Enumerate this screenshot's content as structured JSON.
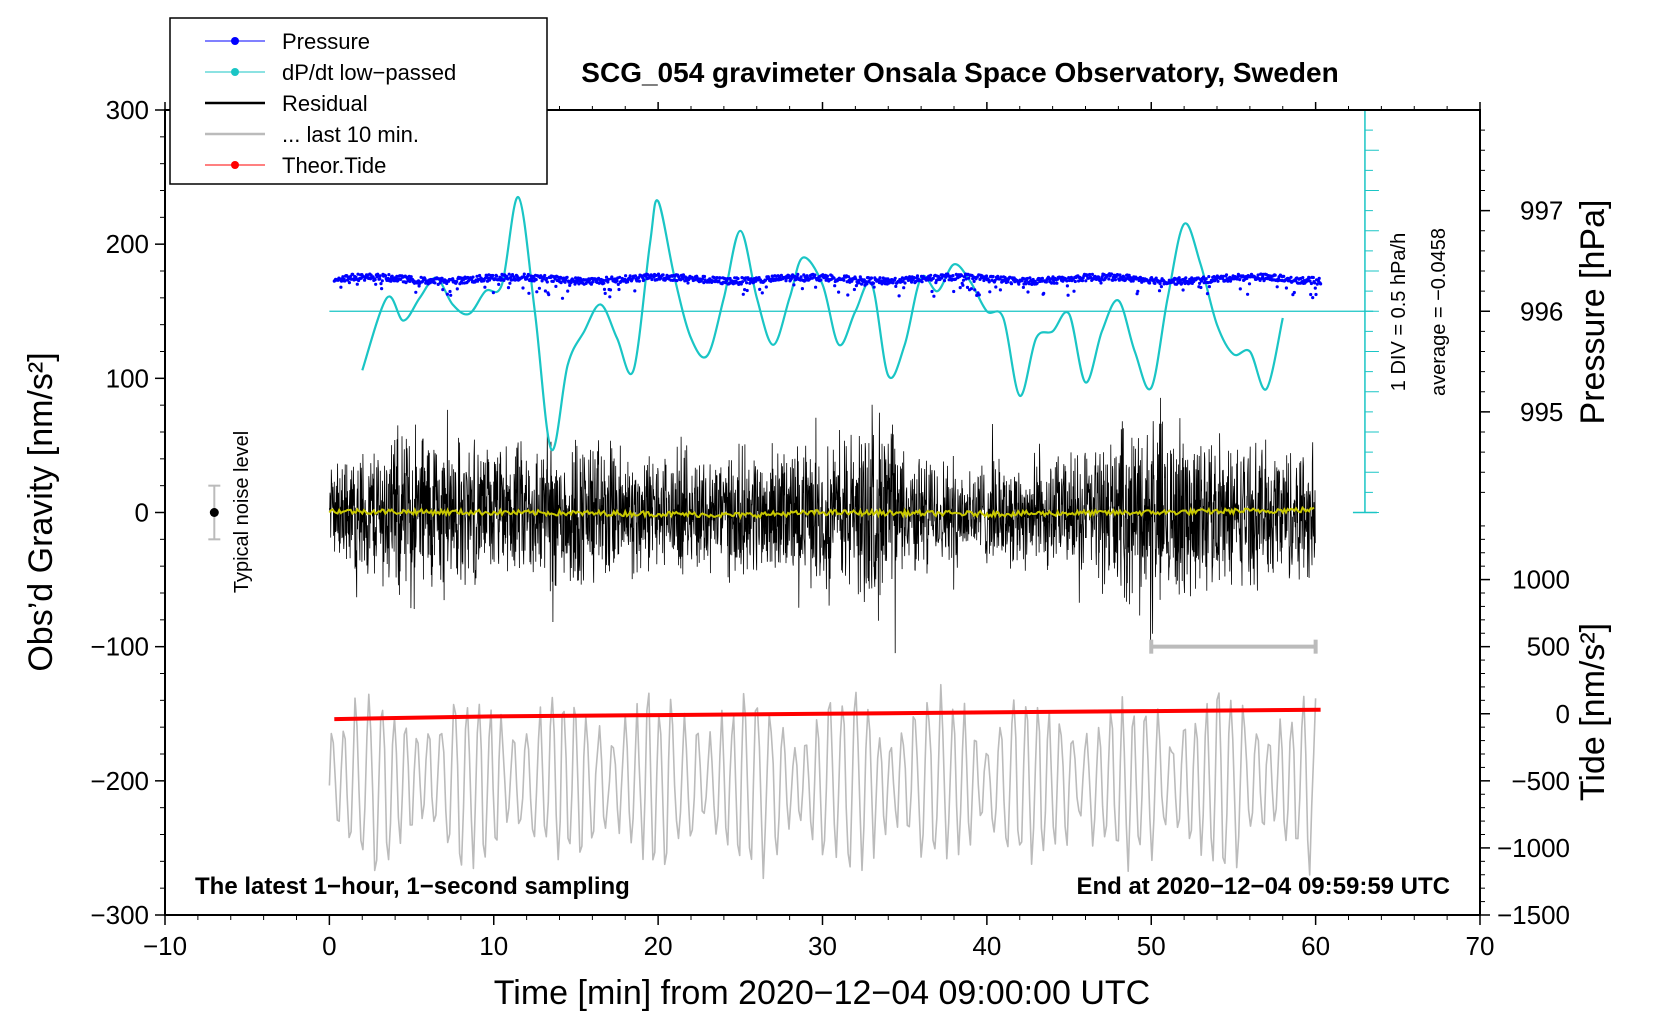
{
  "chart_data": {
    "type": "line",
    "title": "SCG_054 gravimeter Onsala Space Observatory, Sweden",
    "xlabel": "Time [min] from 2020−12−04 09:00:00 UTC",
    "ylabel_left": "Obs’d Gravity [nm/s²]",
    "ylabel_right_top": "Pressure [hPa]",
    "ylabel_right_bottom": "Tide [nm/s²]",
    "xlim": [
      -10,
      70
    ],
    "ylim": [
      -300,
      300
    ],
    "x_ticks": [
      "−10",
      "0",
      "10",
      "20",
      "30",
      "40",
      "50",
      "60",
      "70"
    ],
    "x_tick_values": [
      -10,
      0,
      10,
      20,
      30,
      40,
      50,
      60,
      70
    ],
    "y_ticks": [
      "300",
      "200",
      "100",
      "0",
      "−100",
      "−200",
      "−300"
    ],
    "y_tick_values": [
      300,
      200,
      100,
      0,
      -100,
      -200,
      -300
    ],
    "pressure_axis": {
      "ticks": [
        "997",
        "996",
        "995"
      ],
      "values": [
        997,
        996,
        995
      ],
      "gravity_at_996": 150,
      "gravity_per_hpa": 75
    },
    "tide_axis": {
      "ticks": [
        "1000",
        "500",
        "0",
        "−500",
        "−1000",
        "−1500"
      ],
      "values": [
        1000,
        500,
        0,
        -500,
        -1000,
        -1500
      ],
      "gravity_at_zero": -150,
      "gravity_per_unit": 0.1
    },
    "dpdt_scale": {
      "label": "1 DIV = 0.5 hPa/h",
      "average_label": "average = −0.0458",
      "x": 63,
      "top": 300,
      "bottom": 0,
      "divisions": 20
    },
    "noise_marker": {
      "label": "Typical noise level",
      "x": -7,
      "y": 0,
      "half_range": 20
    },
    "last10_marker": {
      "x_start": 50,
      "x_end": 60,
      "y": -100
    },
    "series": [
      {
        "name": "Pressure",
        "color": "#0000ff",
        "style": "dots",
        "x_start": 0.3,
        "x_end": 60.3,
        "gravity_level": 174
      },
      {
        "name": "dP/dt low−passed",
        "color": "#1ac5c5",
        "style": "line",
        "baseline": 150,
        "points": [
          [
            2,
            106
          ],
          [
            3.5,
            160
          ],
          [
            4.5,
            143
          ],
          [
            5.5,
            160
          ],
          [
            6.5,
            175
          ],
          [
            7.5,
            155
          ],
          [
            8.5,
            148
          ],
          [
            9.5,
            165
          ],
          [
            10.5,
            170
          ],
          [
            11.5,
            235
          ],
          [
            12.5,
            150
          ],
          [
            13.5,
            47
          ],
          [
            14.5,
            110
          ],
          [
            15.5,
            135
          ],
          [
            16.5,
            155
          ],
          [
            17.5,
            130
          ],
          [
            18.5,
            106
          ],
          [
            19.5,
            200
          ],
          [
            20,
            232
          ],
          [
            21,
            175
          ],
          [
            22,
            130
          ],
          [
            23,
            117
          ],
          [
            24,
            160
          ],
          [
            25,
            210
          ],
          [
            26,
            160
          ],
          [
            27,
            125
          ],
          [
            28,
            160
          ],
          [
            28.8,
            190
          ],
          [
            30,
            170
          ],
          [
            31,
            125
          ],
          [
            32,
            150
          ],
          [
            33,
            170
          ],
          [
            34,
            102
          ],
          [
            35,
            125
          ],
          [
            36,
            175
          ],
          [
            37,
            165
          ],
          [
            38,
            185
          ],
          [
            39,
            172
          ],
          [
            40,
            150
          ],
          [
            41,
            145
          ],
          [
            42,
            87
          ],
          [
            43,
            130
          ],
          [
            44,
            135
          ],
          [
            45,
            148
          ],
          [
            46,
            97
          ],
          [
            47,
            135
          ],
          [
            48,
            158
          ],
          [
            49,
            120
          ],
          [
            50,
            93
          ],
          [
            51,
            160
          ],
          [
            52,
            215
          ],
          [
            53,
            185
          ],
          [
            54,
            140
          ],
          [
            55,
            118
          ],
          [
            56,
            120
          ],
          [
            57,
            92
          ],
          [
            58,
            145
          ]
        ]
      },
      {
        "name": "Residual",
        "color": "#000000",
        "style": "line",
        "x_start": 0,
        "x_end": 60,
        "envelope": [
          [
            0,
            40
          ],
          [
            5,
            80
          ],
          [
            10,
            55
          ],
          [
            15,
            70
          ],
          [
            20,
            50
          ],
          [
            25,
            55
          ],
          [
            30,
            60
          ],
          [
            34,
            90
          ],
          [
            35,
            50
          ],
          [
            40,
            45
          ],
          [
            45,
            50
          ],
          [
            50,
            85
          ],
          [
            55,
            60
          ],
          [
            60,
            60
          ]
        ]
      },
      {
        "name": "... last 10 min.",
        "color": "#bbbbbb",
        "style": "line",
        "x_start": 0,
        "x_end": 60,
        "center": -200,
        "amplitude": 60
      },
      {
        "name": "Theor.Tide",
        "color": "#ff0000",
        "style": "line",
        "points": [
          [
            0.3,
            -154
          ],
          [
            10,
            -152
          ],
          [
            20,
            -151
          ],
          [
            30,
            -150
          ],
          [
            40,
            -149
          ],
          [
            50,
            -148
          ],
          [
            60.3,
            -147
          ]
        ]
      },
      {
        "name": "Residual low−passed",
        "color": "#c8c800",
        "style": "line",
        "points": [
          [
            0,
            1
          ],
          [
            10,
            0
          ],
          [
            20,
            -1
          ],
          [
            25,
            -2
          ],
          [
            30,
            0
          ],
          [
            40,
            -1
          ],
          [
            50,
            0
          ],
          [
            60,
            2
          ]
        ]
      }
    ],
    "legend": [
      "Pressure",
      "dP/dt low−passed",
      "Residual",
      "... last 10 min.",
      "Theor.Tide"
    ],
    "legend_position": "top-left",
    "footer_left": "The latest 1−hour, 1−second sampling",
    "footer_right": "End at 2020−12−04 09:59:59 UTC"
  }
}
